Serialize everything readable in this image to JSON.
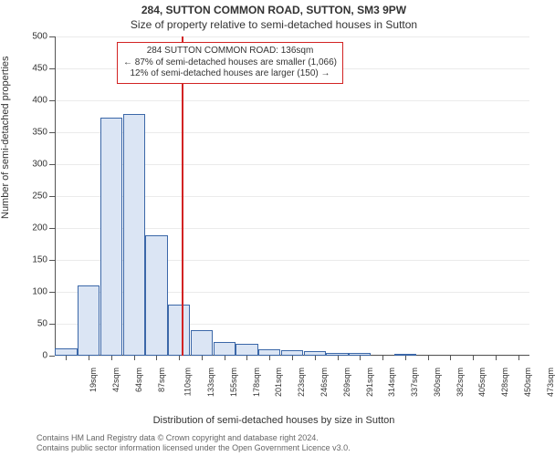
{
  "titles": {
    "main": "284, SUTTON COMMON ROAD, SUTTON, SM3 9PW",
    "sub": "Size of property relative to semi-detached houses in Sutton"
  },
  "axes": {
    "ylabel": "Number of semi-detached properties",
    "xlabel": "Distribution of semi-detached houses by size in Sutton",
    "ylim_max": 500,
    "yticks": [
      0,
      50,
      100,
      150,
      200,
      250,
      300,
      350,
      400,
      450,
      500
    ],
    "xticks": [
      "19sqm",
      "42sqm",
      "64sqm",
      "87sqm",
      "110sqm",
      "133sqm",
      "155sqm",
      "178sqm",
      "201sqm",
      "223sqm",
      "246sqm",
      "269sqm",
      "291sqm",
      "314sqm",
      "337sqm",
      "360sqm",
      "382sqm",
      "405sqm",
      "428sqm",
      "450sqm",
      "473sqm"
    ]
  },
  "chart": {
    "type": "histogram",
    "bar_fill": "#dbe5f4",
    "bar_stroke": "#3b67a8",
    "background": "#ffffff",
    "grid_color": "#e8e8e8",
    "values": [
      12,
      110,
      373,
      378,
      188,
      80,
      40,
      22,
      18,
      10,
      8,
      7,
      5,
      5,
      0,
      2,
      0,
      0,
      0,
      0,
      0
    ],
    "reference": {
      "value_label": "136sqm",
      "position_index": 5.1,
      "color": "#d22323"
    }
  },
  "annotation": {
    "line1": "284 SUTTON COMMON ROAD: 136sqm",
    "line2": "← 87% of semi-detached houses are smaller (1,066)",
    "line3": "12% of semi-detached houses are larger (150) →"
  },
  "footer": {
    "line1": "Contains HM Land Registry data © Crown copyright and database right 2024.",
    "line2": "Contains public sector information licensed under the Open Government Licence v3.0."
  },
  "style": {
    "title_fontsize": 12,
    "axis_label_fontsize": 11,
    "tick_fontsize": 10,
    "annotation_fontsize": 10,
    "footer_fontsize": 9,
    "text_color": "#333333",
    "footer_color": "#666666"
  }
}
